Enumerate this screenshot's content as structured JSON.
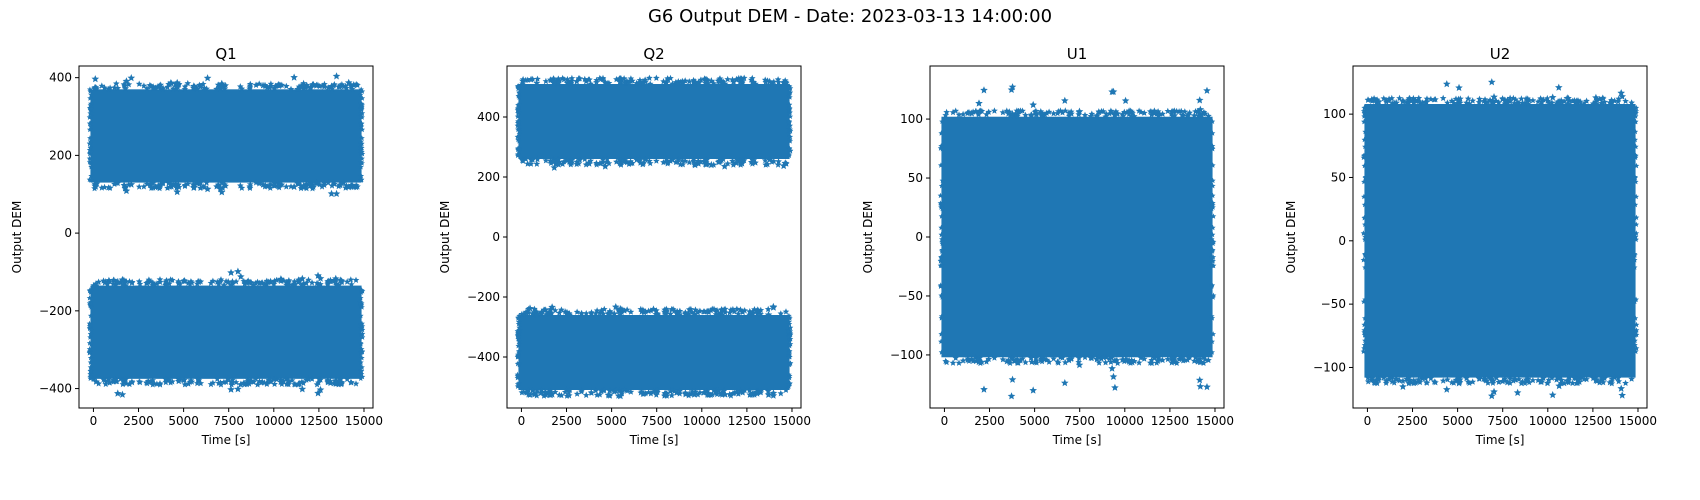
{
  "figure": {
    "suptitle": "G6 Output DEM - Date: 2023-03-13 14:00:00"
  },
  "chart_data": [
    {
      "type": "scatter",
      "title": "Q1",
      "xlabel": "Time [s]",
      "ylabel": "Output DEM",
      "marker": "star",
      "color": "#1f77b4",
      "xlim": [
        -800,
        15500
      ],
      "ylim": [
        -450,
        430
      ],
      "xticks": [
        0,
        2500,
        5000,
        7500,
        10000,
        12500,
        15000
      ],
      "yticks": [
        -400,
        -200,
        0,
        200,
        400
      ],
      "x_range": [
        0,
        14700
      ],
      "bands": [
        {
          "center": 250,
          "half_width": 120,
          "outlier_max": 405,
          "outlier_min": 100
        },
        {
          "center": -255,
          "half_width": 120,
          "outlier_max": -95,
          "outlier_min": -420
        }
      ]
    },
    {
      "type": "scatter",
      "title": "Q2",
      "xlabel": "Time [s]",
      "ylabel": "Output DEM",
      "marker": "star",
      "color": "#1f77b4",
      "xlim": [
        -800,
        15500
      ],
      "ylim": [
        -570,
        570
      ],
      "xticks": [
        0,
        2500,
        5000,
        7500,
        10000,
        12500,
        15000
      ],
      "yticks": [
        -400,
        -200,
        0,
        200,
        400
      ],
      "x_range": [
        0,
        14700
      ],
      "bands": [
        {
          "center": 385,
          "half_width": 125,
          "outlier_max": 520,
          "outlier_min": 230
        },
        {
          "center": -385,
          "half_width": 125,
          "outlier_max": -230,
          "outlier_min": -530
        }
      ]
    },
    {
      "type": "scatter",
      "title": "U1",
      "xlabel": "Time [s]",
      "ylabel": "Output DEM",
      "marker": "star",
      "color": "#1f77b4",
      "xlim": [
        -800,
        15500
      ],
      "ylim": [
        -145,
        145
      ],
      "xticks": [
        0,
        2500,
        5000,
        7500,
        10000,
        12500,
        15000
      ],
      "yticks": [
        -100,
        -50,
        0,
        50,
        100
      ],
      "x_range": [
        0,
        14700
      ],
      "bands": [
        {
          "center": 0,
          "half_width": 102,
          "outlier_max": 128,
          "outlier_min": -135
        }
      ]
    },
    {
      "type": "scatter",
      "title": "U2",
      "xlabel": "Time [s]",
      "ylabel": "Output DEM",
      "marker": "star",
      "color": "#1f77b4",
      "xlim": [
        -800,
        15500
      ],
      "ylim": [
        -132,
        138
      ],
      "xticks": [
        0,
        2500,
        5000,
        7500,
        10000,
        12500,
        15000
      ],
      "yticks": [
        -100,
        -50,
        0,
        50,
        100
      ],
      "x_range": [
        0,
        14700
      ],
      "bands": [
        {
          "center": 0,
          "half_width": 108,
          "outlier_max": 127,
          "outlier_min": -123
        }
      ]
    }
  ]
}
